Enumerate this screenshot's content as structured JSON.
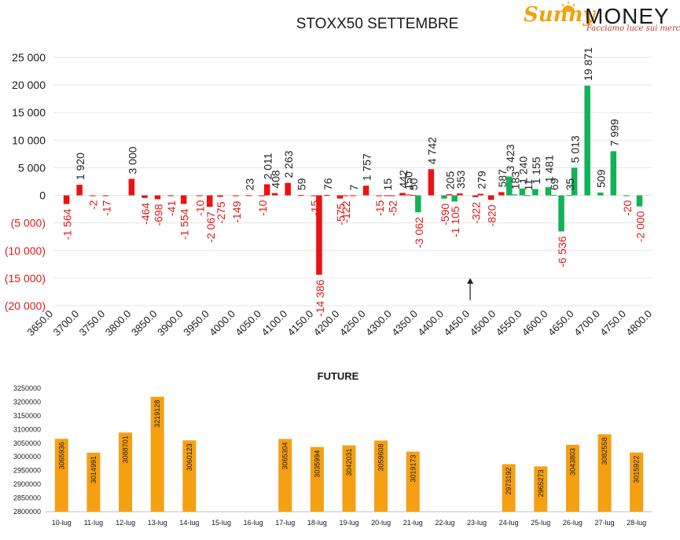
{
  "logo": {
    "brand_left": "Sunny",
    "brand_right": "MONEY",
    "tagline": "Facciamo luce sui mercati"
  },
  "colors": {
    "positive": "#12b256",
    "negative": "#ee1111",
    "future": "#f5a012",
    "neg_label": "#e01818",
    "pos_label": "#222222"
  },
  "chart_data": [
    {
      "type": "bar",
      "title": "STOXX50 SETTEMBRE",
      "xlabel": "",
      "ylabel": "",
      "ylim": [
        -20000,
        25000
      ],
      "yticks": [
        "(20 000)",
        "(15 000)",
        "(10 000)",
        "(5 000)",
        "0",
        "5 000",
        "10 000",
        "15 000",
        "20 000",
        "25 000"
      ],
      "ytick_values": [
        -20000,
        -15000,
        -10000,
        -5000,
        0,
        5000,
        10000,
        15000,
        20000,
        25000
      ],
      "xticks": [
        "3650.0",
        "3700.0",
        "3750.0",
        "3800.0",
        "3850.0",
        "3900.0",
        "3950.0",
        "4000.0",
        "4050.0",
        "4100.0",
        "4150.0",
        "4200.0",
        "4250.0",
        "4300.0",
        "4350.0",
        "4400.0",
        "4450.0",
        "4500.0",
        "4550.0",
        "4600.0",
        "4650.0",
        "4700.0",
        "4750.0",
        "4800.0"
      ],
      "xtick_values": [
        3650,
        3700,
        3750,
        3800,
        3850,
        3900,
        3950,
        4000,
        4050,
        4100,
        4150,
        4200,
        4250,
        4300,
        4350,
        4400,
        4450,
        4500,
        4550,
        4600,
        4650,
        4700,
        4750,
        4800
      ],
      "xlim": [
        3650,
        4800
      ],
      "grid": true,
      "annotation": {
        "type": "arrow",
        "x": 4450,
        "from_y": -19000,
        "to_y": -15000
      },
      "series": [
        {
          "color": "#ee1111",
          "points": [
            {
              "x": 3675,
              "value": -1564,
              "label": "-1 564"
            },
            {
              "x": 3700,
              "value": 1920,
              "label": "1 920"
            },
            {
              "x": 3725,
              "value": -2,
              "label": "-2"
            },
            {
              "x": 3750,
              "value": -17,
              "label": "-17"
            },
            {
              "x": 3800,
              "value": 3000,
              "label": "3 000"
            },
            {
              "x": 3825,
              "value": -464,
              "label": "-464"
            },
            {
              "x": 3850,
              "value": -698,
              "label": "-698"
            },
            {
              "x": 3875,
              "value": -41,
              "label": "-41"
            },
            {
              "x": 3900,
              "value": -1554,
              "label": "-1 554"
            },
            {
              "x": 3930,
              "value": -10,
              "label": "-10"
            },
            {
              "x": 3950,
              "value": -2067,
              "label": "-2 067"
            },
            {
              "x": 3970,
              "value": -275,
              "label": "-275"
            },
            {
              "x": 4000,
              "value": -149,
              "label": "-149"
            },
            {
              "x": 4025,
              "value": 23,
              "label": "23"
            },
            {
              "x": 4050,
              "value": -10,
              "label": "-10"
            },
            {
              "x": 4060,
              "value": 2011,
              "label": "2 011"
            },
            {
              "x": 4075,
              "value": 408,
              "label": "408"
            },
            {
              "x": 4100,
              "value": 2263,
              "label": "2 263"
            },
            {
              "x": 4125,
              "value": 59,
              "label": "59"
            },
            {
              "x": 4150,
              "value": -15,
              "label": "-15"
            },
            {
              "x": 4160,
              "value": -14386,
              "label": "-14 386"
            },
            {
              "x": 4175,
              "value": 76,
              "label": "76"
            },
            {
              "x": 4200,
              "value": -575,
              "label": "-575"
            },
            {
              "x": 4210,
              "value": -122,
              "label": "-122"
            },
            {
              "x": 4225,
              "value": 7,
              "label": "7"
            },
            {
              "x": 4250,
              "value": 1757,
              "label": "1 757"
            },
            {
              "x": 4275,
              "value": -15,
              "label": "-15"
            },
            {
              "x": 4290,
              "value": 15,
              "label": "15"
            },
            {
              "x": 4300,
              "value": -52,
              "label": "-52"
            },
            {
              "x": 4320,
              "value": 442,
              "label": "442"
            },
            {
              "x": 4330,
              "value": 150,
              "label": "150"
            },
            {
              "x": 4340,
              "value": 50,
              "label": "50"
            },
            {
              "x": 4375,
              "value": 4742,
              "label": "4 742"
            },
            {
              "x": 4410,
              "value": 205,
              "label": "205"
            },
            {
              "x": 4430,
              "value": 353,
              "label": "353"
            },
            {
              "x": 4460,
              "value": -322,
              "label": "-322"
            },
            {
              "x": 4470,
              "value": 279,
              "label": "279"
            },
            {
              "x": 4490,
              "value": -820,
              "label": "-820"
            },
            {
              "x": 4510,
              "value": 587,
              "label": "587"
            }
          ]
        },
        {
          "color": "#12b256",
          "points": [
            {
              "x": 4350,
              "value": -3062,
              "label": "-3 062"
            },
            {
              "x": 4400,
              "value": -590,
              "label": "-590"
            },
            {
              "x": 4420,
              "value": -1105,
              "label": "-1 105"
            },
            {
              "x": 4525,
              "value": 3423,
              "label": "3 423"
            },
            {
              "x": 4535,
              "value": 183,
              "label": "183"
            },
            {
              "x": 4550,
              "value": 1240,
              "label": "1 240"
            },
            {
              "x": 4560,
              "value": 11,
              "label": "11"
            },
            {
              "x": 4575,
              "value": 1155,
              "label": "1 155"
            },
            {
              "x": 4600,
              "value": 1481,
              "label": "1 481"
            },
            {
              "x": 4610,
              "value": 69,
              "label": "69"
            },
            {
              "x": 4625,
              "value": -6536,
              "label": "-6 536"
            },
            {
              "x": 4640,
              "value": 35,
              "label": "35"
            },
            {
              "x": 4650,
              "value": 5013,
              "label": "5 013"
            },
            {
              "x": 4675,
              "value": 19871,
              "label": "19 871"
            },
            {
              "x": 4700,
              "value": 509,
              "label": "509"
            },
            {
              "x": 4725,
              "value": 7999,
              "label": "7 999"
            },
            {
              "x": 4750,
              "value": -20,
              "label": "-20"
            },
            {
              "x": 4775,
              "value": -2000,
              "label": "-2 000"
            }
          ]
        }
      ]
    },
    {
      "type": "bar",
      "title": "FUTURE",
      "xlabel": "",
      "ylabel": "",
      "ylim": [
        2800000,
        3250000
      ],
      "yticks": [
        "2800000",
        "2850000",
        "2900000",
        "2950000",
        "3000000",
        "3050000",
        "3100000",
        "3150000",
        "3200000",
        "3250000"
      ],
      "ytick_values": [
        2800000,
        2850000,
        2900000,
        2950000,
        3000000,
        3050000,
        3100000,
        3150000,
        3200000,
        3250000
      ],
      "grid": false,
      "categories": [
        "10-lug",
        "11-lug",
        "12-lug",
        "13-lug",
        "14-lug",
        "15-lug",
        "16-lug",
        "17-lug",
        "18-lug",
        "19-lug",
        "20-lug",
        "21-lug",
        "22-lug",
        "23-lug",
        "24-lug",
        "25-lug",
        "26-lug",
        "27-lug",
        "28-lug"
      ],
      "values": [
        3065936,
        3014991,
        3088701,
        3219128,
        3060123,
        null,
        null,
        3065304,
        3035994,
        3042031,
        3059608,
        3019173,
        null,
        null,
        2973192,
        2965273,
        3043803,
        3082558,
        3015922
      ],
      "color": "#f5a012"
    }
  ]
}
